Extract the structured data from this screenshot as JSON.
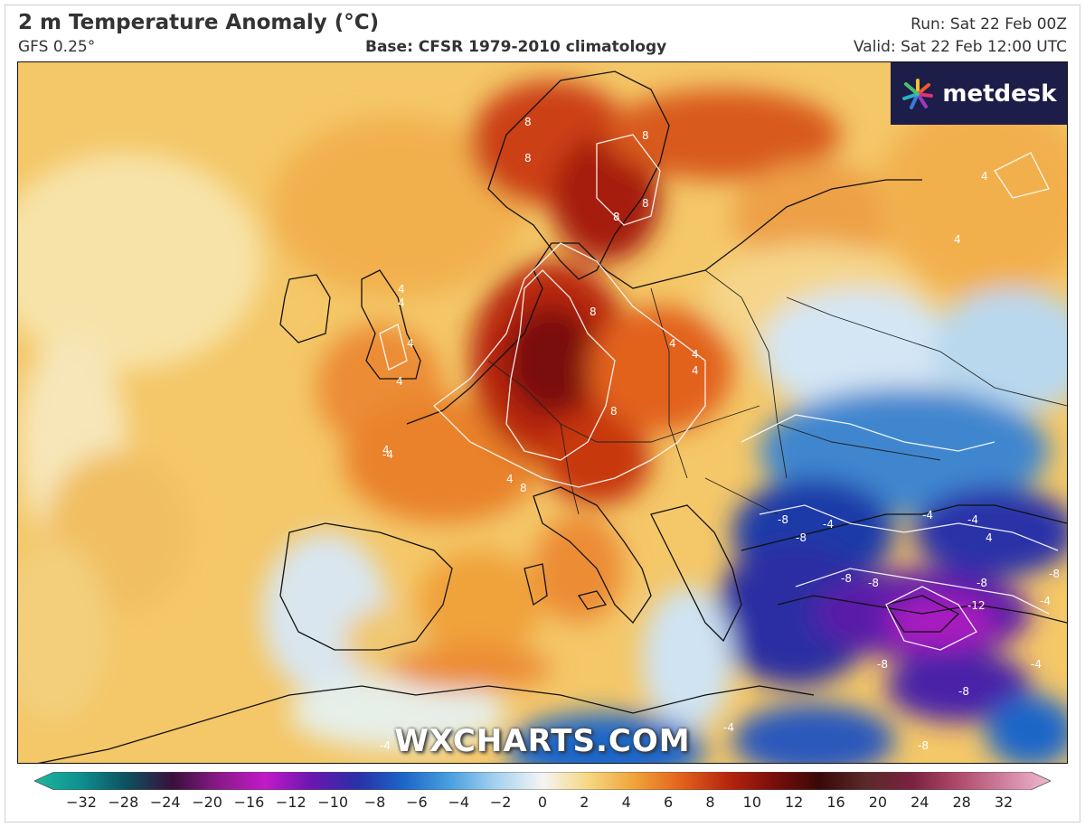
{
  "header": {
    "title": "2 m Temperature Anomaly (°C)",
    "model": "GFS 0.25°",
    "base": "Base: CFSR 1979-2010 climatology",
    "run": "Run: Sat 22 Feb 00Z",
    "valid": "Valid: Sat 22 Feb 12:00 UTC"
  },
  "logo": {
    "text": "metdesk"
  },
  "watermark": "WXCHARTS.COM",
  "colorbar": {
    "ticks": [
      "−32",
      "−28",
      "−24",
      "−20",
      "−16",
      "−12",
      "−10",
      "−8",
      "−6",
      "−4",
      "−2",
      "0",
      "2",
      "4",
      "6",
      "8",
      "10",
      "12",
      "16",
      "20",
      "24",
      "28",
      "32"
    ],
    "colors": [
      "#1fb8a0",
      "#0f8f8f",
      "#0d5060",
      "#3a0f3a",
      "#8a1a8a",
      "#c21ac8",
      "#6a16b0",
      "#2a30a8",
      "#1c66c8",
      "#4aa0e0",
      "#a6d2f0",
      "#f4f4f4",
      "#f5d780",
      "#f0a23a",
      "#e2621c",
      "#b8260e",
      "#7a0e0a",
      "#3a0808",
      "#5a2a2a",
      "#7a2240",
      "#b04a6a",
      "#d080a0",
      "#f0b8d0"
    ]
  },
  "contour_labels": [
    "8",
    "8",
    "8",
    "8",
    "8",
    "8",
    "4",
    "4",
    "4",
    "4",
    "4",
    "4",
    "4",
    "8",
    "8",
    "4",
    "4",
    "4",
    "-4",
    "-8",
    "-8",
    "-4",
    "-8",
    "-8",
    "-12",
    "-8",
    "-8",
    "-4",
    "-8",
    "-4",
    "-4",
    "-4",
    "-8",
    "-8",
    "-4",
    "4",
    "-4",
    "4"
  ]
}
